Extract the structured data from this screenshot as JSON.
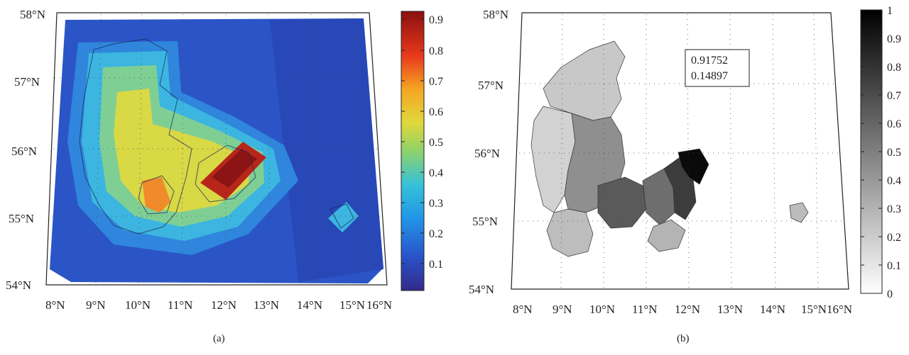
{
  "panels": [
    {
      "id": "a",
      "caption": "(a)",
      "colormap": "jet",
      "lat_labels": [
        "58°N",
        "57°N",
        "56°N",
        "55°N",
        "54°N"
      ],
      "lon_labels": [
        "8°N",
        "9°N",
        "10°N",
        "11°N",
        "12°N",
        "13°N",
        "14°N",
        "15°N",
        "16°N"
      ],
      "colorbar": {
        "ticks": [
          "0.9",
          "0.8",
          "0.7",
          "0.6",
          "0.5",
          "0.4",
          "0.3",
          "0.2",
          "0.1"
        ],
        "range": [
          0.02,
          0.93
        ]
      }
    },
    {
      "id": "b",
      "caption": "(b)",
      "colormap": "gray",
      "lat_labels": [
        "58°N",
        "57°N",
        "56°N",
        "55°N",
        "54°N"
      ],
      "lon_labels": [
        "8°N",
        "9°N",
        "10°N",
        "11°N",
        "12°N",
        "13°N",
        "14°N",
        "15°N",
        "16°N"
      ],
      "colorbar": {
        "ticks": [
          "1",
          "0.9",
          "0.8",
          "0.7",
          "0.6",
          "0.5",
          "0.4",
          "0.3",
          "0.2",
          "0.1",
          "0"
        ],
        "range": [
          0,
          1
        ]
      },
      "annotation": [
        "0.91752",
        "0.14897"
      ]
    }
  ]
}
